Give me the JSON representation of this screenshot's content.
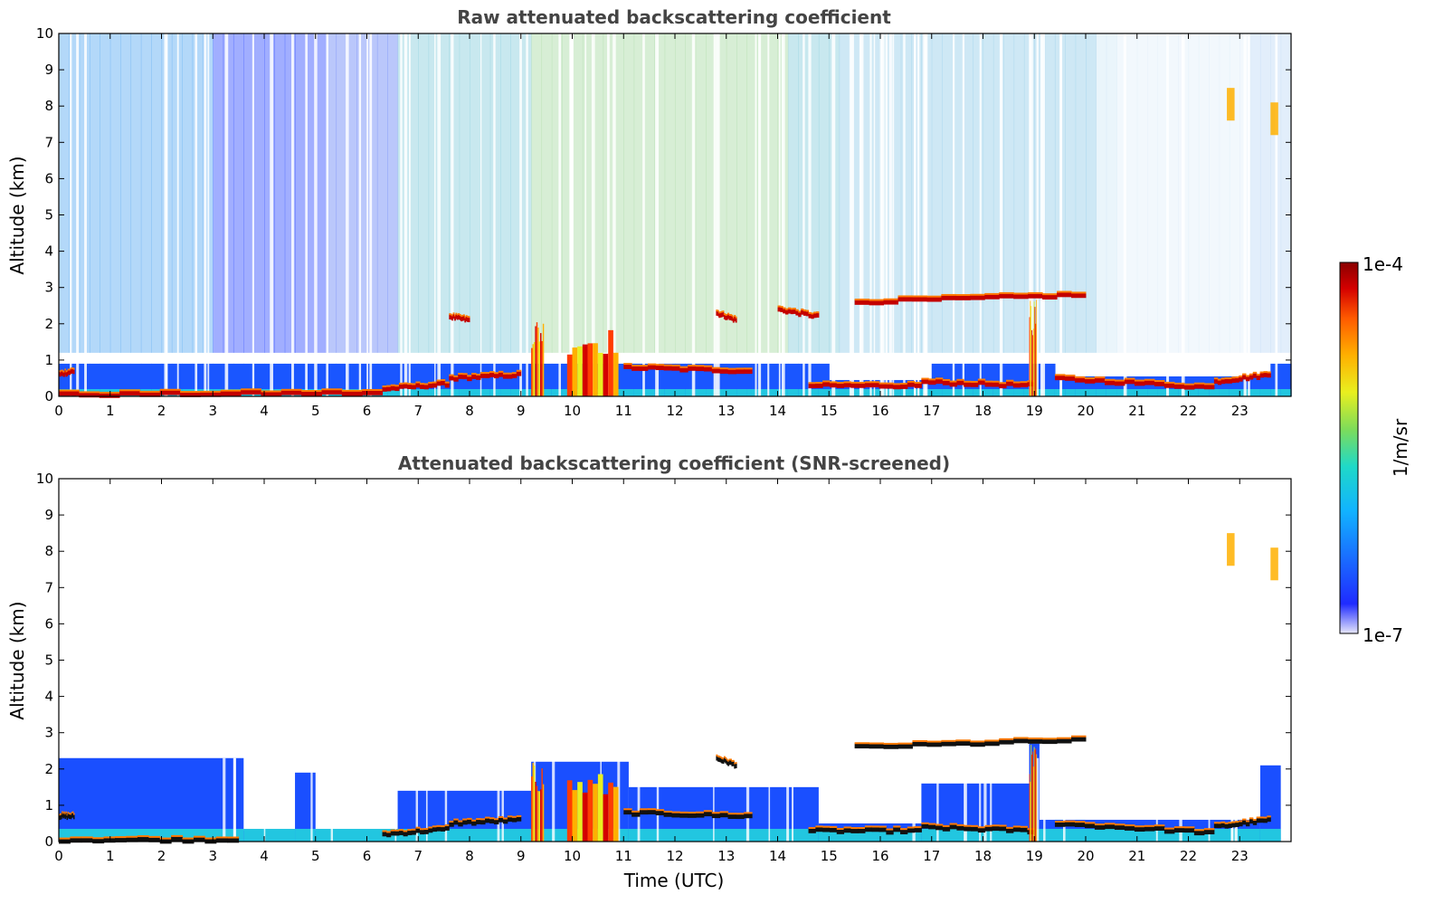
{
  "chart_data": [
    {
      "type": "heatmap",
      "title": "Raw attenuated backscattering coefficient",
      "xlabel": "",
      "ylabel": "Altitude (km)",
      "xlim": [
        0,
        24
      ],
      "ylim": [
        0,
        10
      ],
      "xticks": [
        "0",
        "1",
        "2",
        "3",
        "4",
        "5",
        "6",
        "7",
        "8",
        "9",
        "10",
        "11",
        "12",
        "13",
        "14",
        "15",
        "16",
        "17",
        "18",
        "19",
        "20",
        "21",
        "22",
        "23"
      ],
      "yticks": [
        "0",
        "1",
        "2",
        "3",
        "4",
        "5",
        "6",
        "7",
        "8",
        "9",
        "10"
      ],
      "cloud_layers": [
        {
          "t0": 0.0,
          "t1": 6.3,
          "alt_start": 0.05,
          "alt_end": 0.1
        },
        {
          "t0": 0.0,
          "t1": 0.3,
          "alt_start": 0.6,
          "alt_end": 0.7
        },
        {
          "t0": 6.3,
          "t1": 7.6,
          "alt_start": 0.2,
          "alt_end": 0.35
        },
        {
          "t0": 7.6,
          "t1": 8.0,
          "alt_start": 2.2,
          "alt_end": 2.1
        },
        {
          "t0": 7.6,
          "t1": 9.0,
          "alt_start": 0.5,
          "alt_end": 0.6
        },
        {
          "t0": 11.0,
          "t1": 13.5,
          "alt_start": 0.8,
          "alt_end": 0.7
        },
        {
          "t0": 12.8,
          "t1": 13.2,
          "alt_start": 2.3,
          "alt_end": 2.1
        },
        {
          "t0": 14.0,
          "t1": 14.8,
          "alt_start": 2.4,
          "alt_end": 2.2
        },
        {
          "t0": 14.6,
          "t1": 16.8,
          "alt_start": 0.3,
          "alt_end": 0.3
        },
        {
          "t0": 15.5,
          "t1": 20.0,
          "alt_start": 2.6,
          "alt_end": 2.8
        },
        {
          "t0": 16.8,
          "t1": 19.0,
          "alt_start": 0.4,
          "alt_end": 0.3
        },
        {
          "t0": 19.4,
          "t1": 22.5,
          "alt_start": 0.5,
          "alt_end": 0.25
        },
        {
          "t0": 22.5,
          "t1": 23.6,
          "alt_start": 0.4,
          "alt_end": 0.6
        }
      ],
      "convective_plumes": [
        {
          "t0": 9.2,
          "t1": 9.45,
          "alt_top": 2.2
        },
        {
          "t0": 9.9,
          "t1": 10.9,
          "alt_top": 1.9
        },
        {
          "t0": 18.9,
          "t1": 19.05,
          "alt_top": 2.7
        }
      ],
      "elevated_features": [
        {
          "t0": 22.75,
          "t1": 22.9,
          "alt_bottom": 7.6,
          "alt_top": 8.5
        },
        {
          "t0": 23.6,
          "t1": 23.75,
          "alt_bottom": 7.2,
          "alt_top": 8.1
        }
      ]
    },
    {
      "type": "heatmap",
      "title": "Attenuated backscattering coefficient (SNR-screened)",
      "xlabel": "Time (UTC)",
      "ylabel": "Altitude (km)",
      "xlim": [
        0,
        24
      ],
      "ylim": [
        0,
        10
      ],
      "xticks": [
        "0",
        "1",
        "2",
        "3",
        "4",
        "5",
        "6",
        "7",
        "8",
        "9",
        "10",
        "11",
        "12",
        "13",
        "14",
        "15",
        "16",
        "17",
        "18",
        "19",
        "20",
        "21",
        "22",
        "23"
      ],
      "yticks": [
        "0",
        "1",
        "2",
        "3",
        "4",
        "5",
        "6",
        "7",
        "8",
        "9",
        "10"
      ],
      "valid_regions": [
        {
          "t0": 0.0,
          "t1": 3.6,
          "alt_top": 2.3
        },
        {
          "t0": 3.6,
          "t1": 4.6,
          "alt_top": 0.3
        },
        {
          "t0": 4.6,
          "t1": 5.0,
          "alt_top": 1.9
        },
        {
          "t0": 5.0,
          "t1": 6.6,
          "alt_top": 0.3
        },
        {
          "t0": 6.6,
          "t1": 9.2,
          "alt_top": 1.4
        },
        {
          "t0": 9.2,
          "t1": 11.1,
          "alt_top": 2.2
        },
        {
          "t0": 11.1,
          "t1": 14.8,
          "alt_top": 1.5
        },
        {
          "t0": 14.8,
          "t1": 16.8,
          "alt_top": 0.5
        },
        {
          "t0": 16.8,
          "t1": 18.9,
          "alt_top": 1.6
        },
        {
          "t0": 18.9,
          "t1": 19.1,
          "alt_top": 2.7
        },
        {
          "t0": 19.1,
          "t1": 23.4,
          "alt_top": 0.6
        },
        {
          "t0": 23.4,
          "t1": 23.8,
          "alt_top": 2.1
        }
      ],
      "cloud_layers": [
        {
          "t0": 0.0,
          "t1": 3.5,
          "alt_start": 0.05,
          "alt_end": 0.05
        },
        {
          "t0": 0.0,
          "t1": 0.3,
          "alt_start": 0.7,
          "alt_end": 0.7
        },
        {
          "t0": 6.3,
          "t1": 7.6,
          "alt_start": 0.2,
          "alt_end": 0.35
        },
        {
          "t0": 7.6,
          "t1": 9.0,
          "alt_start": 0.5,
          "alt_end": 0.6
        },
        {
          "t0": 11.0,
          "t1": 13.5,
          "alt_start": 0.8,
          "alt_end": 0.7
        },
        {
          "t0": 12.8,
          "t1": 13.2,
          "alt_start": 2.3,
          "alt_end": 2.1
        },
        {
          "t0": 14.6,
          "t1": 16.8,
          "alt_start": 0.3,
          "alt_end": 0.3
        },
        {
          "t0": 15.5,
          "t1": 20.0,
          "alt_start": 2.6,
          "alt_end": 2.8
        },
        {
          "t0": 16.8,
          "t1": 19.0,
          "alt_start": 0.4,
          "alt_end": 0.3
        },
        {
          "t0": 19.4,
          "t1": 22.5,
          "alt_start": 0.5,
          "alt_end": 0.25
        },
        {
          "t0": 22.5,
          "t1": 23.6,
          "alt_start": 0.4,
          "alt_end": 0.6
        }
      ],
      "convective_plumes": [
        {
          "t0": 9.2,
          "t1": 9.45,
          "alt_top": 2.2
        },
        {
          "t0": 9.9,
          "t1": 10.9,
          "alt_top": 1.9
        },
        {
          "t0": 18.9,
          "t1": 19.05,
          "alt_top": 2.7
        }
      ],
      "elevated_features": [
        {
          "t0": 22.75,
          "t1": 22.9,
          "alt_bottom": 7.6,
          "alt_top": 8.5
        },
        {
          "t0": 23.6,
          "t1": 23.75,
          "alt_bottom": 7.2,
          "alt_top": 8.1
        }
      ]
    }
  ],
  "colorbar": {
    "max_label": "1e-4",
    "min_label": "1e-7",
    "unit_label": "1/m/sr",
    "scale": "log",
    "range": [
      1e-07,
      0.0001
    ],
    "colormap": [
      "#e6e6fa",
      "#1f2bff",
      "#1a6bff",
      "#11b3ff",
      "#1fd9c8",
      "#7ddc5a",
      "#e9ef1f",
      "#ffb000",
      "#ff5a00",
      "#d40000",
      "#8a0000"
    ]
  }
}
